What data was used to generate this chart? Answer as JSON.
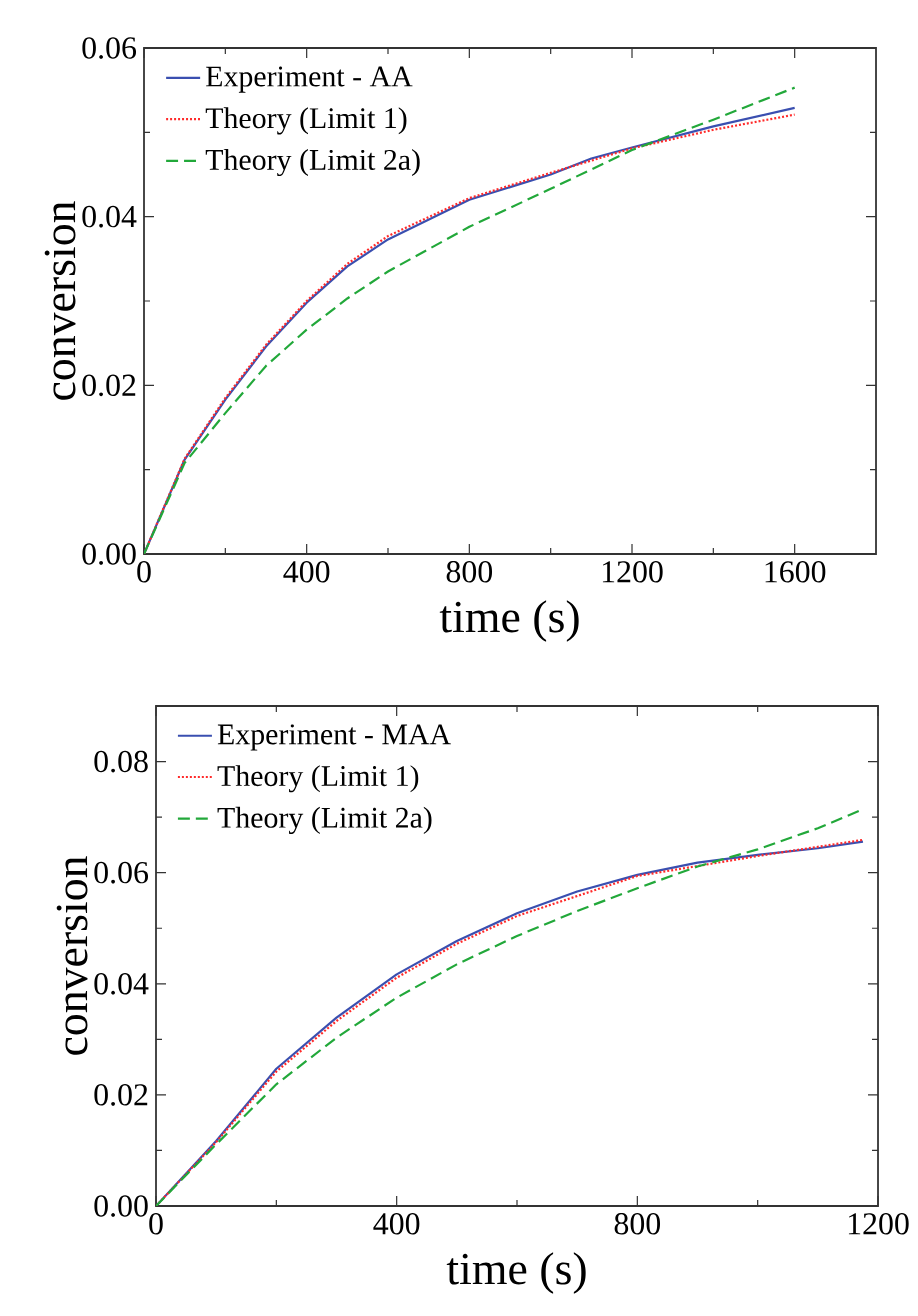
{
  "chart_data": [
    {
      "type": "line",
      "xlabel": "time (s)",
      "ylabel": "conversion",
      "xlim": [
        0,
        1800
      ],
      "ylim": [
        0,
        0.06
      ],
      "xticks": [
        0,
        400,
        800,
        1200,
        1600
      ],
      "yticks": [
        {
          "value": 0,
          "label": "0.00"
        },
        {
          "value": 0.02,
          "label": "0.02"
        },
        {
          "value": 0.04,
          "label": "0.04"
        },
        {
          "value": 0.06,
          "label": "0.06"
        }
      ],
      "legend": "top left",
      "grid": false,
      "series": [
        {
          "name": "Experiment - AA",
          "color": "#3a4fb0",
          "line_style": "solid",
          "x": [
            0,
            100,
            200,
            300,
            400,
            500,
            600,
            800,
            1000,
            1100,
            1200,
            1400,
            1600
          ],
          "values": [
            0,
            0.0112,
            0.0183,
            0.0246,
            0.0298,
            0.0341,
            0.0373,
            0.042,
            0.045,
            0.0469,
            0.0482,
            0.0507,
            0.0529
          ]
        },
        {
          "name": "Theory (Limit 1)",
          "color": "#ff2a2a",
          "line_style": "dotted",
          "x": [
            0,
            100,
            200,
            300,
            400,
            500,
            600,
            800,
            1000,
            1200,
            1400,
            1600
          ],
          "values": [
            0,
            0.0113,
            0.0185,
            0.0248,
            0.03,
            0.0344,
            0.0377,
            0.0422,
            0.0452,
            0.0481,
            0.0503,
            0.0521
          ]
        },
        {
          "name": "Theory (Limit 2a)",
          "color": "#22a83a",
          "line_style": "dashed",
          "x": [
            0,
            100,
            200,
            300,
            400,
            500,
            600,
            800,
            1000,
            1200,
            1400,
            1600
          ],
          "values": [
            0,
            0.0108,
            0.0167,
            0.0223,
            0.0266,
            0.0303,
            0.0335,
            0.0388,
            0.0433,
            0.0479,
            0.0515,
            0.0553
          ]
        }
      ]
    },
    {
      "type": "line",
      "xlabel": "time (s)",
      "ylabel": "conversion",
      "xlim": [
        0,
        1200
      ],
      "ylim": [
        0,
        0.09
      ],
      "xticks": [
        0,
        400,
        800,
        1200
      ],
      "yticks": [
        {
          "value": 0,
          "label": "0.00"
        },
        {
          "value": 0.02,
          "label": "0.02"
        },
        {
          "value": 0.04,
          "label": "0.04"
        },
        {
          "value": 0.06,
          "label": "0.06"
        },
        {
          "value": 0.08,
          "label": "0.08"
        }
      ],
      "legend": "top left",
      "grid": false,
      "series": [
        {
          "name": "Experiment - MAA",
          "color": "#3a4fb0",
          "line_style": "solid",
          "x": [
            0,
            100,
            200,
            300,
            400,
            500,
            600,
            700,
            800,
            900,
            1000,
            1100,
            1175
          ],
          "values": [
            0,
            0.0117,
            0.0247,
            0.0339,
            0.0417,
            0.0477,
            0.0527,
            0.0566,
            0.0596,
            0.0618,
            0.0632,
            0.0644,
            0.0656
          ]
        },
        {
          "name": "Theory (Limit 1)",
          "color": "#ff2a2a",
          "line_style": "dotted",
          "x": [
            0,
            100,
            200,
            300,
            400,
            500,
            600,
            800,
            1000,
            1175
          ],
          "values": [
            0,
            0.0115,
            0.0242,
            0.0333,
            0.0411,
            0.0472,
            0.0522,
            0.0594,
            0.063,
            0.0659
          ]
        },
        {
          "name": "Theory (Limit 2a)",
          "color": "#22a83a",
          "line_style": "dashed",
          "x": [
            0,
            100,
            200,
            300,
            400,
            500,
            600,
            700,
            800,
            900,
            1000,
            1100,
            1175
          ],
          "values": [
            0,
            0.0111,
            0.0219,
            0.0303,
            0.0375,
            0.0435,
            0.0486,
            0.0531,
            0.0572,
            0.0611,
            0.0642,
            0.068,
            0.0714
          ]
        }
      ]
    }
  ]
}
